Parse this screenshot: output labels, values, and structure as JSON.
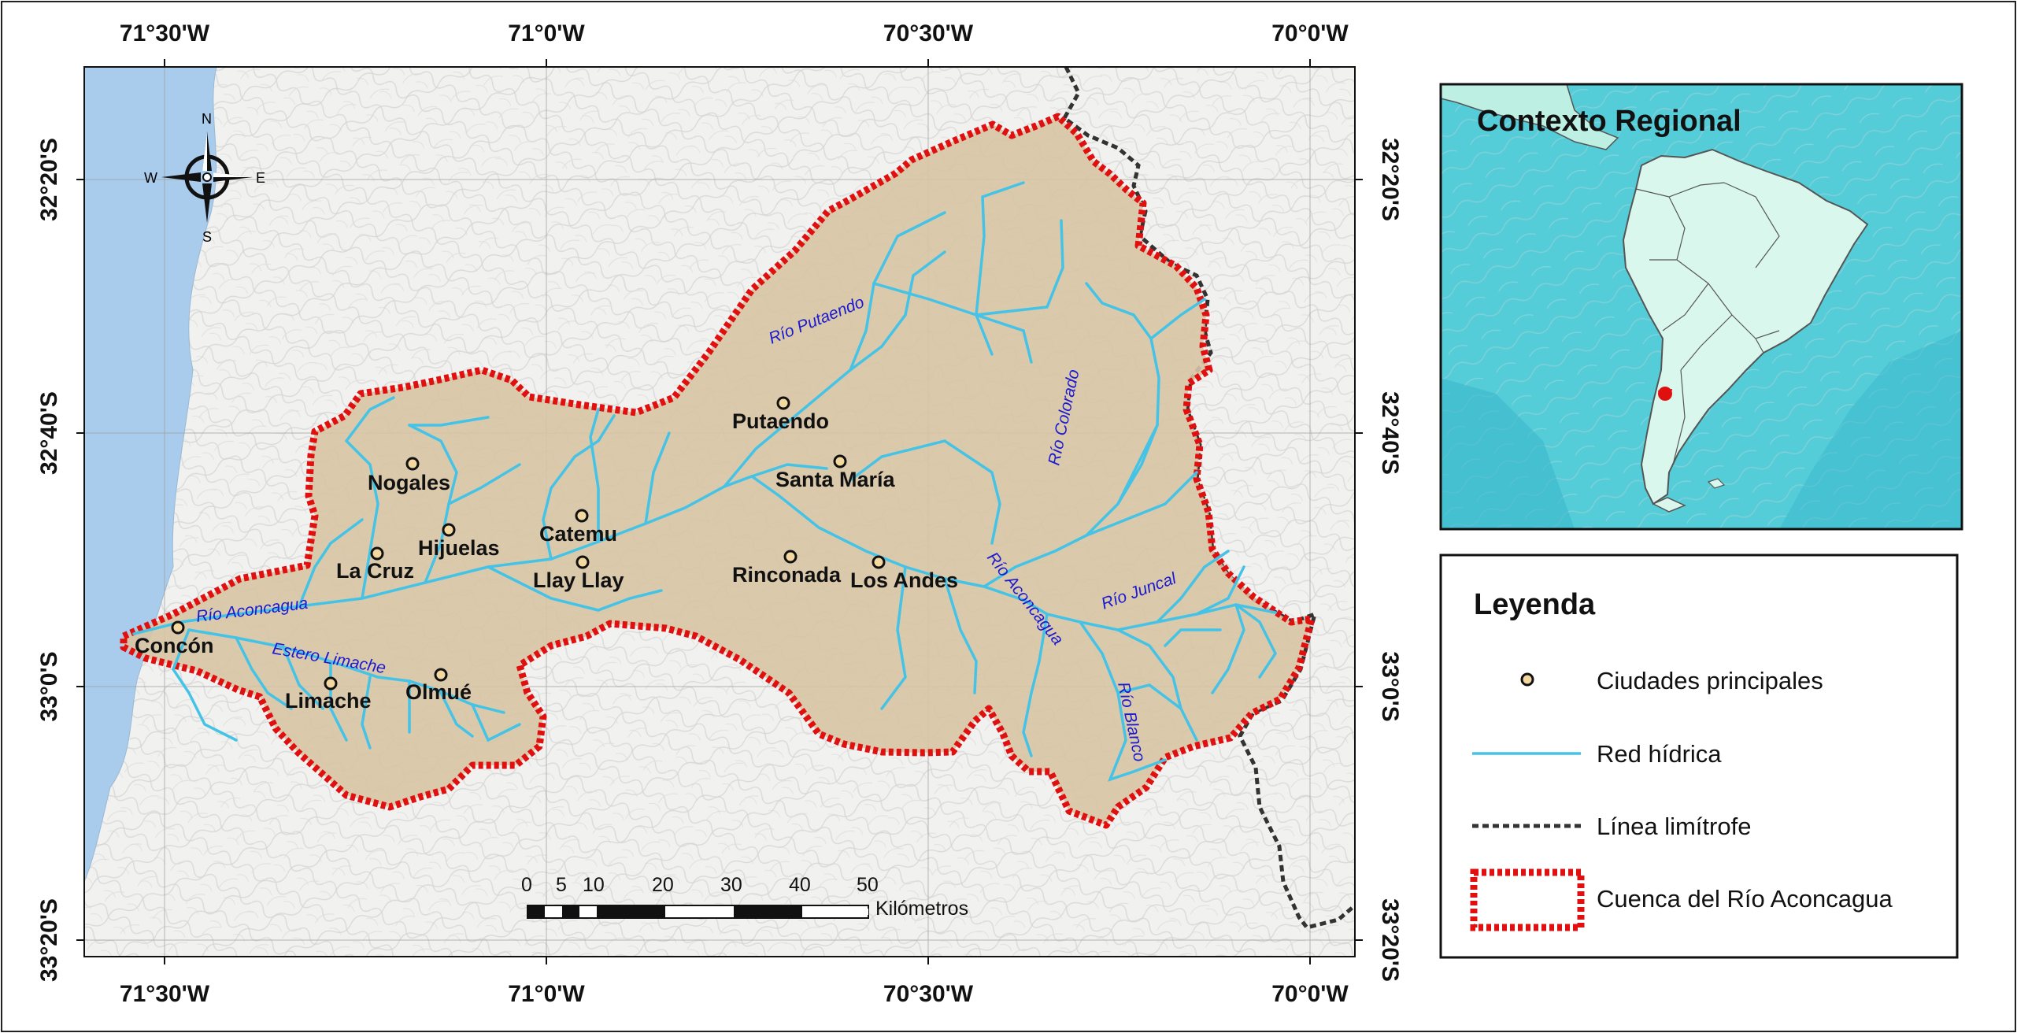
{
  "map": {
    "grid": {
      "longitudes": [
        "71°30'W",
        "71°0'W",
        "70°30'W",
        "70°0'W"
      ],
      "latitudes": [
        "32°20'S",
        "32°40'S",
        "33°0'S",
        "33°20'S"
      ]
    },
    "north_arrow": {
      "n": "N",
      "s": "S",
      "e": "E",
      "w": "W"
    },
    "cities": [
      {
        "name": "Concón"
      },
      {
        "name": "Nogales"
      },
      {
        "name": "Hijuelas"
      },
      {
        "name": "La Cruz"
      },
      {
        "name": "Catemu"
      },
      {
        "name": "Llay Llay"
      },
      {
        "name": "Limache"
      },
      {
        "name": "Olmué"
      },
      {
        "name": "Putaendo"
      },
      {
        "name": "Santa María"
      },
      {
        "name": "Rinconada"
      },
      {
        "name": "Los Andes"
      }
    ],
    "rivers": {
      "aconcagua_west": "Río Aconcagua",
      "limache": "Estero Limache",
      "putaendo": "Río Putaendo",
      "colorado": "Río Colorado",
      "aconcagua_east": "Río Aconcagua",
      "juncal": "Río Juncal",
      "blanco": "Río Blanco"
    },
    "scale_bar": {
      "ticks": [
        "0",
        "5",
        "10",
        "20",
        "30",
        "40",
        "50"
      ],
      "unit": "Kilómetros"
    }
  },
  "inset": {
    "title": "Contexto Regional"
  },
  "legend": {
    "title": "Leyenda",
    "items": [
      {
        "label": "Ciudades principales"
      },
      {
        "label": "Red hídrica"
      },
      {
        "label": "Línea limítrofe"
      },
      {
        "label": "Cuenca del Río Aconcagua"
      }
    ]
  },
  "colors": {
    "basin_fill": "#d8c4a4",
    "basin_border": "#e01010",
    "river": "#45c3e6",
    "sea_map": "#a9ccec",
    "inset_ocean": "#55cdd8",
    "inset_land": "#d9f7ec",
    "boundary_line": "#333333",
    "city_fill": "#f3d9a0"
  }
}
